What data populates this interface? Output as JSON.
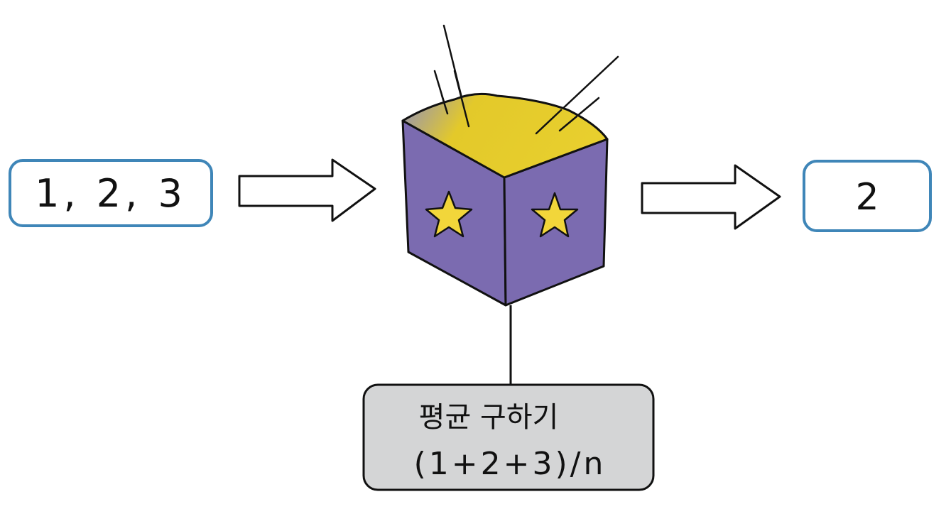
{
  "input_box": {
    "text": "1, 2, 3"
  },
  "output_box": {
    "text": "2"
  },
  "function_box": {
    "line1": "평균 구하기",
    "line2": "(1+2+3)/n"
  },
  "colors": {
    "box_border": "#3f86b8",
    "cube_side": "#7b6bb0",
    "cube_top": "#e3c92a",
    "cube_top_fade": "#8f8fbf",
    "star": "#f2d63a",
    "label_box": "#d4d5d6"
  },
  "icons": [
    "right-arrow-icon",
    "magic-cube-icon",
    "star-icon"
  ]
}
